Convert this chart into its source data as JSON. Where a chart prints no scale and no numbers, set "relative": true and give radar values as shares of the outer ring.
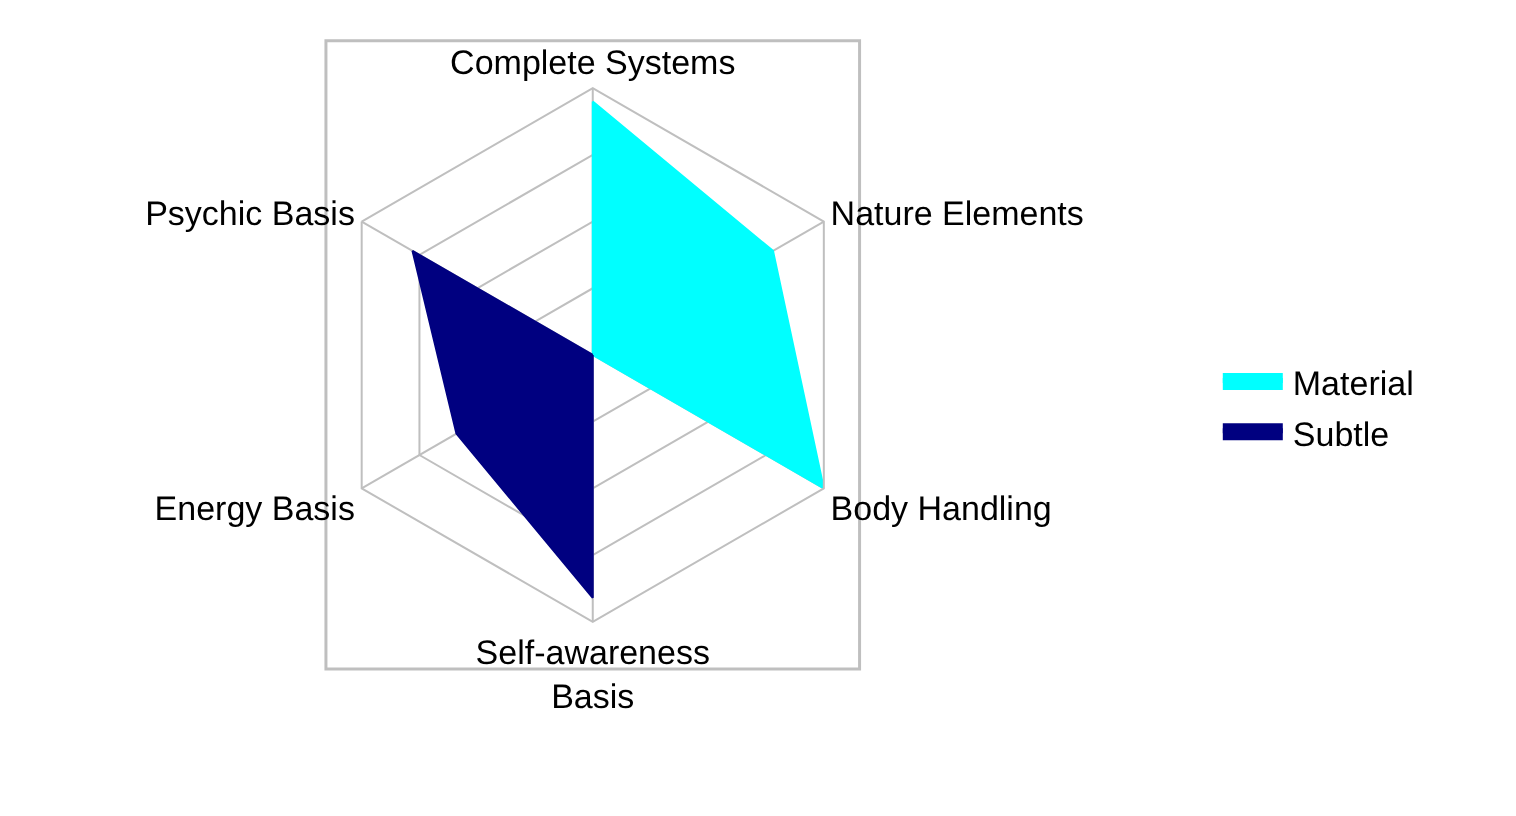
{
  "chart_data": {
    "type": "radar",
    "relative": true,
    "categories": [
      "Complete Systems",
      "Nature Elements",
      "Body Handling",
      "Self-awareness Basis",
      "Energy Basis",
      "Psychic Basis"
    ],
    "series": [
      {
        "name": "Material",
        "color": "#00ffff",
        "values": [
          0.95,
          0.78,
          1,
          0,
          0,
          0
        ]
      },
      {
        "name": "Subtle",
        "color": "#000080",
        "values": [
          0,
          0,
          0,
          0.91,
          0.59,
          0.78
        ]
      }
    ],
    "grid": true,
    "legend": "right",
    "marker": "none"
  }
}
